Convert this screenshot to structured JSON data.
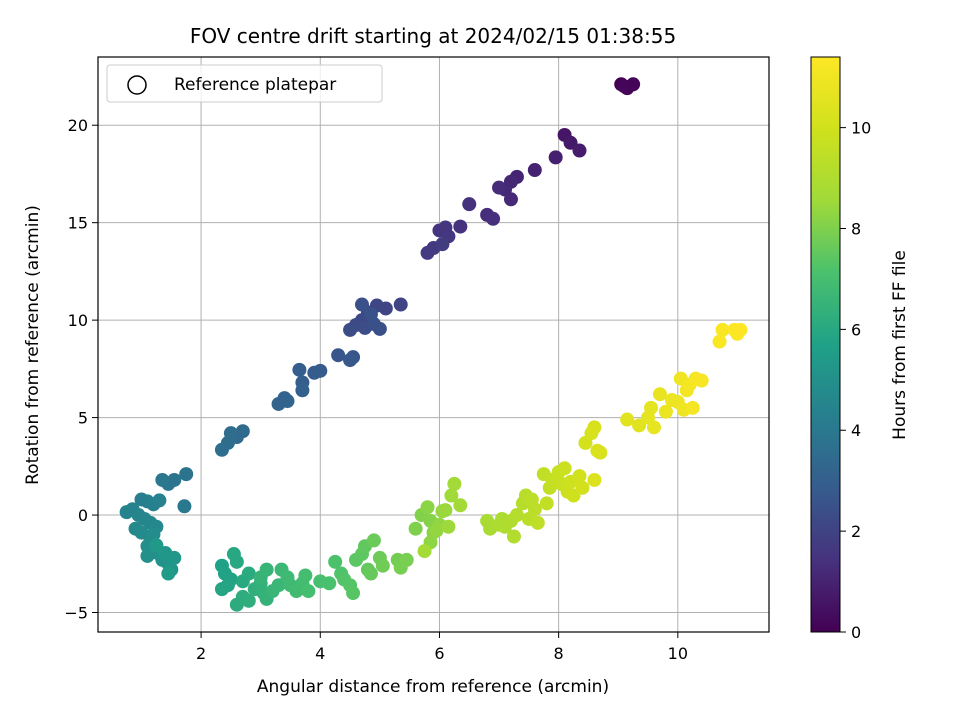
{
  "chart_data": {
    "type": "scatter",
    "title": "FOV centre drift starting at 2024/02/15 01:38:55",
    "xlabel": "Angular distance from reference (arcmin)",
    "ylabel": "Rotation from reference (arcmin)",
    "xlim": [
      0.27,
      11.53
    ],
    "ylim": [
      -6.0,
      23.5
    ],
    "xticks": [
      2,
      4,
      6,
      8,
      10
    ],
    "yticks": [
      -5,
      0,
      5,
      10,
      15,
      20
    ],
    "grid": true,
    "legend": {
      "placement": "top-left",
      "entries": [
        "Reference platepar"
      ]
    },
    "colorbar": {
      "label": "Hours from first FF file",
      "colormap": "viridis",
      "range": [
        0,
        11.4
      ],
      "ticks": [
        0,
        2,
        4,
        6,
        8,
        10
      ]
    },
    "points": [
      [
        9.05,
        22.1,
        0.0
      ],
      [
        9.15,
        21.9,
        0.05
      ],
      [
        9.25,
        22.1,
        0.1
      ],
      [
        9.1,
        22.0,
        0.15
      ],
      [
        8.1,
        19.5,
        0.6
      ],
      [
        8.2,
        19.1,
        0.7
      ],
      [
        8.35,
        18.7,
        0.8
      ],
      [
        7.95,
        18.35,
        0.9
      ],
      [
        7.6,
        17.7,
        1.0
      ],
      [
        7.3,
        17.35,
        1.05
      ],
      [
        7.2,
        17.1,
        1.1
      ],
      [
        7.1,
        16.7,
        1.15
      ],
      [
        7.2,
        16.2,
        1.2
      ],
      [
        7.0,
        16.8,
        1.25
      ],
      [
        6.8,
        15.4,
        1.3
      ],
      [
        6.9,
        15.2,
        1.35
      ],
      [
        6.5,
        15.95,
        1.4
      ],
      [
        6.35,
        14.8,
        1.45
      ],
      [
        6.0,
        14.6,
        1.5
      ],
      [
        6.1,
        14.75,
        1.55
      ],
      [
        6.15,
        14.3,
        1.6
      ],
      [
        5.9,
        13.7,
        1.65
      ],
      [
        5.8,
        13.45,
        1.7
      ],
      [
        6.05,
        13.9,
        1.75
      ],
      [
        5.35,
        10.8,
        2.0
      ],
      [
        5.1,
        10.6,
        2.05
      ],
      [
        4.95,
        10.75,
        2.1
      ],
      [
        4.8,
        10.4,
        2.15
      ],
      [
        4.7,
        10.0,
        2.2
      ],
      [
        4.6,
        9.75,
        2.25
      ],
      [
        4.5,
        9.5,
        2.3
      ],
      [
        4.75,
        9.6,
        2.35
      ],
      [
        4.9,
        9.8,
        2.4
      ],
      [
        5.0,
        9.55,
        2.45
      ],
      [
        4.7,
        10.8,
        2.5
      ],
      [
        4.85,
        10.3,
        2.55
      ],
      [
        4.55,
        8.1,
        2.6
      ],
      [
        4.3,
        8.2,
        2.65
      ],
      [
        4.5,
        7.95,
        2.7
      ],
      [
        4.0,
        7.4,
        2.8
      ],
      [
        3.9,
        7.3,
        2.85
      ],
      [
        3.65,
        7.45,
        2.9
      ],
      [
        3.7,
        6.8,
        2.95
      ],
      [
        3.7,
        6.4,
        3.0
      ],
      [
        3.4,
        6.0,
        3.1
      ],
      [
        3.3,
        5.7,
        3.15
      ],
      [
        3.45,
        5.85,
        3.2
      ],
      [
        2.7,
        4.3,
        3.4
      ],
      [
        2.6,
        4.0,
        3.45
      ],
      [
        2.5,
        4.2,
        3.5
      ],
      [
        2.45,
        3.7,
        3.55
      ],
      [
        2.35,
        3.35,
        3.6
      ],
      [
        1.75,
        2.1,
        3.8
      ],
      [
        1.55,
        1.8,
        3.85
      ],
      [
        1.45,
        1.6,
        3.9
      ],
      [
        1.35,
        1.8,
        3.95
      ],
      [
        1.72,
        0.45,
        4.0
      ],
      [
        1.0,
        0.8,
        4.2
      ],
      [
        1.1,
        0.7,
        4.25
      ],
      [
        1.2,
        0.55,
        4.3
      ],
      [
        1.3,
        0.75,
        4.35
      ],
      [
        0.85,
        0.3,
        4.4
      ],
      [
        0.75,
        0.15,
        4.45
      ],
      [
        0.95,
        0.0,
        4.5
      ],
      [
        1.05,
        -0.2,
        4.55
      ],
      [
        1.15,
        -0.4,
        4.6
      ],
      [
        1.25,
        -0.6,
        4.65
      ],
      [
        0.9,
        -0.7,
        4.7
      ],
      [
        1.0,
        -0.9,
        4.75
      ],
      [
        1.2,
        -1.0,
        4.8
      ],
      [
        1.15,
        -1.3,
        4.85
      ],
      [
        1.1,
        -1.6,
        4.9
      ],
      [
        1.2,
        -1.9,
        4.95
      ],
      [
        1.1,
        -2.1,
        5.0
      ],
      [
        1.3,
        -2.0,
        5.05
      ],
      [
        1.35,
        -2.3,
        5.1
      ],
      [
        1.45,
        -2.5,
        5.15
      ],
      [
        1.5,
        -2.8,
        5.2
      ],
      [
        1.55,
        -2.2,
        5.25
      ],
      [
        1.4,
        -1.95,
        5.3
      ],
      [
        1.25,
        -1.55,
        5.35
      ],
      [
        1.45,
        -3.0,
        5.4
      ],
      [
        2.35,
        -2.6,
        5.7
      ],
      [
        2.4,
        -3.0,
        5.75
      ],
      [
        2.5,
        -3.3,
        5.8
      ],
      [
        2.45,
        -3.6,
        5.85
      ],
      [
        2.35,
        -3.8,
        5.9
      ],
      [
        2.6,
        -2.4,
        5.95
      ],
      [
        2.55,
        -2.0,
        6.0
      ],
      [
        2.7,
        -3.4,
        6.05
      ],
      [
        2.8,
        -3.0,
        6.1
      ],
      [
        2.6,
        -4.6,
        6.15
      ],
      [
        2.7,
        -4.2,
        6.2
      ],
      [
        2.8,
        -4.4,
        6.25
      ],
      [
        2.9,
        -3.8,
        6.3
      ],
      [
        3.0,
        -3.5,
        6.35
      ],
      [
        3.05,
        -4.0,
        6.4
      ],
      [
        3.1,
        -4.3,
        6.45
      ],
      [
        3.0,
        -3.2,
        6.5
      ],
      [
        3.1,
        -2.8,
        6.55
      ],
      [
        3.2,
        -3.9,
        6.6
      ],
      [
        3.3,
        -3.6,
        6.65
      ],
      [
        3.35,
        -2.8,
        6.7
      ],
      [
        3.45,
        -3.2,
        6.75
      ],
      [
        3.5,
        -3.6,
        6.8
      ],
      [
        3.6,
        -3.9,
        6.85
      ],
      [
        3.7,
        -3.5,
        6.9
      ],
      [
        3.75,
        -3.1,
        6.95
      ],
      [
        3.8,
        -3.9,
        7.0
      ],
      [
        4.0,
        -3.4,
        7.05
      ],
      [
        4.15,
        -3.5,
        7.1
      ],
      [
        4.25,
        -2.4,
        7.15
      ],
      [
        4.35,
        -3.0,
        7.2
      ],
      [
        4.4,
        -3.3,
        7.25
      ],
      [
        4.5,
        -3.6,
        7.3
      ],
      [
        4.55,
        -4.0,
        7.35
      ],
      [
        4.6,
        -2.3,
        7.4
      ],
      [
        4.7,
        -2.0,
        7.45
      ],
      [
        4.75,
        -1.6,
        7.5
      ],
      [
        4.8,
        -2.8,
        7.55
      ],
      [
        4.85,
        -3.0,
        7.6
      ],
      [
        4.9,
        -1.3,
        7.65
      ],
      [
        5.0,
        -2.2,
        7.7
      ],
      [
        5.05,
        -2.6,
        7.75
      ],
      [
        5.3,
        -2.3,
        7.8
      ],
      [
        5.35,
        -2.7,
        7.85
      ],
      [
        5.45,
        -2.3,
        7.9
      ],
      [
        5.6,
        -0.7,
        8.0
      ],
      [
        5.7,
        0.0,
        8.05
      ],
      [
        5.85,
        -0.3,
        8.1
      ],
      [
        5.9,
        -0.9,
        8.15
      ],
      [
        5.8,
        0.4,
        8.2
      ],
      [
        5.85,
        -1.4,
        8.25
      ],
      [
        6.0,
        -0.5,
        8.3
      ],
      [
        5.95,
        -0.8,
        8.35
      ],
      [
        6.05,
        0.2,
        8.4
      ],
      [
        6.1,
        0.25,
        8.45
      ],
      [
        6.15,
        -0.6,
        8.5
      ],
      [
        6.2,
        1.0,
        8.55
      ],
      [
        6.25,
        1.6,
        8.6
      ],
      [
        6.35,
        0.5,
        8.65
      ],
      [
        5.75,
        -1.85,
        8.7
      ],
      [
        6.8,
        -0.3,
        8.8
      ],
      [
        6.85,
        -0.7,
        8.85
      ],
      [
        7.0,
        -0.5,
        8.9
      ],
      [
        7.05,
        -0.2,
        8.95
      ],
      [
        7.1,
        -0.6,
        9.0
      ],
      [
        7.2,
        -0.3,
        9.05
      ],
      [
        7.25,
        -1.1,
        9.1
      ],
      [
        7.3,
        0.0,
        9.15
      ],
      [
        7.4,
        0.6,
        9.2
      ],
      [
        7.45,
        1.0,
        9.25
      ],
      [
        7.5,
        -0.2,
        9.3
      ],
      [
        7.55,
        0.8,
        9.35
      ],
      [
        7.6,
        0.3,
        9.4
      ],
      [
        7.65,
        -0.4,
        9.45
      ],
      [
        7.75,
        2.1,
        9.5
      ],
      [
        7.8,
        0.6,
        9.55
      ],
      [
        7.85,
        1.4,
        9.6
      ],
      [
        7.9,
        1.8,
        9.65
      ],
      [
        8.0,
        2.2,
        9.7
      ],
      [
        8.05,
        1.6,
        9.75
      ],
      [
        8.1,
        2.4,
        9.8
      ],
      [
        8.15,
        1.2,
        9.85
      ],
      [
        8.2,
        1.7,
        9.9
      ],
      [
        8.25,
        1.0,
        9.95
      ],
      [
        8.35,
        2.0,
        10.0
      ],
      [
        8.4,
        1.4,
        10.05
      ],
      [
        8.45,
        3.7,
        10.1
      ],
      [
        8.55,
        4.2,
        10.15
      ],
      [
        8.6,
        4.5,
        10.2
      ],
      [
        8.65,
        3.3,
        10.25
      ],
      [
        8.7,
        3.2,
        10.3
      ],
      [
        8.6,
        1.8,
        10.35
      ],
      [
        9.15,
        4.9,
        10.5
      ],
      [
        9.35,
        4.6,
        10.55
      ],
      [
        9.5,
        5.0,
        10.6
      ],
      [
        9.55,
        5.5,
        10.65
      ],
      [
        9.6,
        4.5,
        10.7
      ],
      [
        9.7,
        6.2,
        10.75
      ],
      [
        9.8,
        5.3,
        10.8
      ],
      [
        9.9,
        5.9,
        10.85
      ],
      [
        10.0,
        5.8,
        10.9
      ],
      [
        10.05,
        7.0,
        10.95
      ],
      [
        10.1,
        5.4,
        11.0
      ],
      [
        10.15,
        6.4,
        11.05
      ],
      [
        10.2,
        6.7,
        11.1
      ],
      [
        10.25,
        5.5,
        11.15
      ],
      [
        10.3,
        7.0,
        11.2
      ],
      [
        10.4,
        6.9,
        11.25
      ],
      [
        10.7,
        8.9,
        11.3
      ],
      [
        10.75,
        9.5,
        11.32
      ],
      [
        10.95,
        9.5,
        11.35
      ],
      [
        11.0,
        9.3,
        11.38
      ],
      [
        11.05,
        9.5,
        11.4
      ]
    ]
  }
}
